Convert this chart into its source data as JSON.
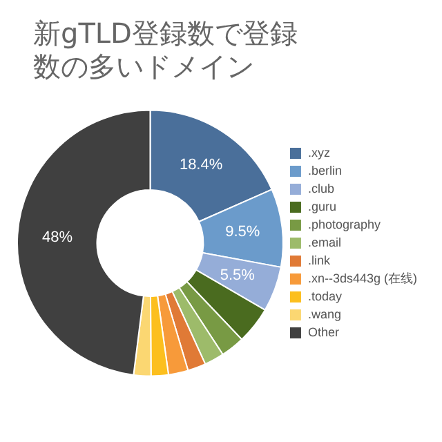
{
  "chart_data": {
    "type": "donut",
    "title": "新gTLD登録数で登録数の多いドメイン",
    "categories": [
      ".xyz",
      ".berlin",
      ".club",
      ".guru",
      ".photography",
      ".email",
      ".link",
      ".xn--3ds443g (在线)",
      ".today",
      ".wang",
      "Other"
    ],
    "values": [
      18.4,
      9.5,
      5.5,
      4.5,
      2.9,
      2.4,
      2.2,
      2.4,
      2.1,
      2.1,
      48
    ],
    "colors": [
      "#4a6f9a",
      "#6b9bcb",
      "#95add8",
      "#4a6b1f",
      "#789a44",
      "#9dbb6a",
      "#e07a36",
      "#f79a3a",
      "#fcbf1e",
      "#fbd772",
      "#404040"
    ],
    "value_labels": [
      "18.4%",
      "9.5%",
      "5.5%",
      null,
      null,
      null,
      null,
      null,
      null,
      null,
      "48%"
    ],
    "legend": "right"
  }
}
